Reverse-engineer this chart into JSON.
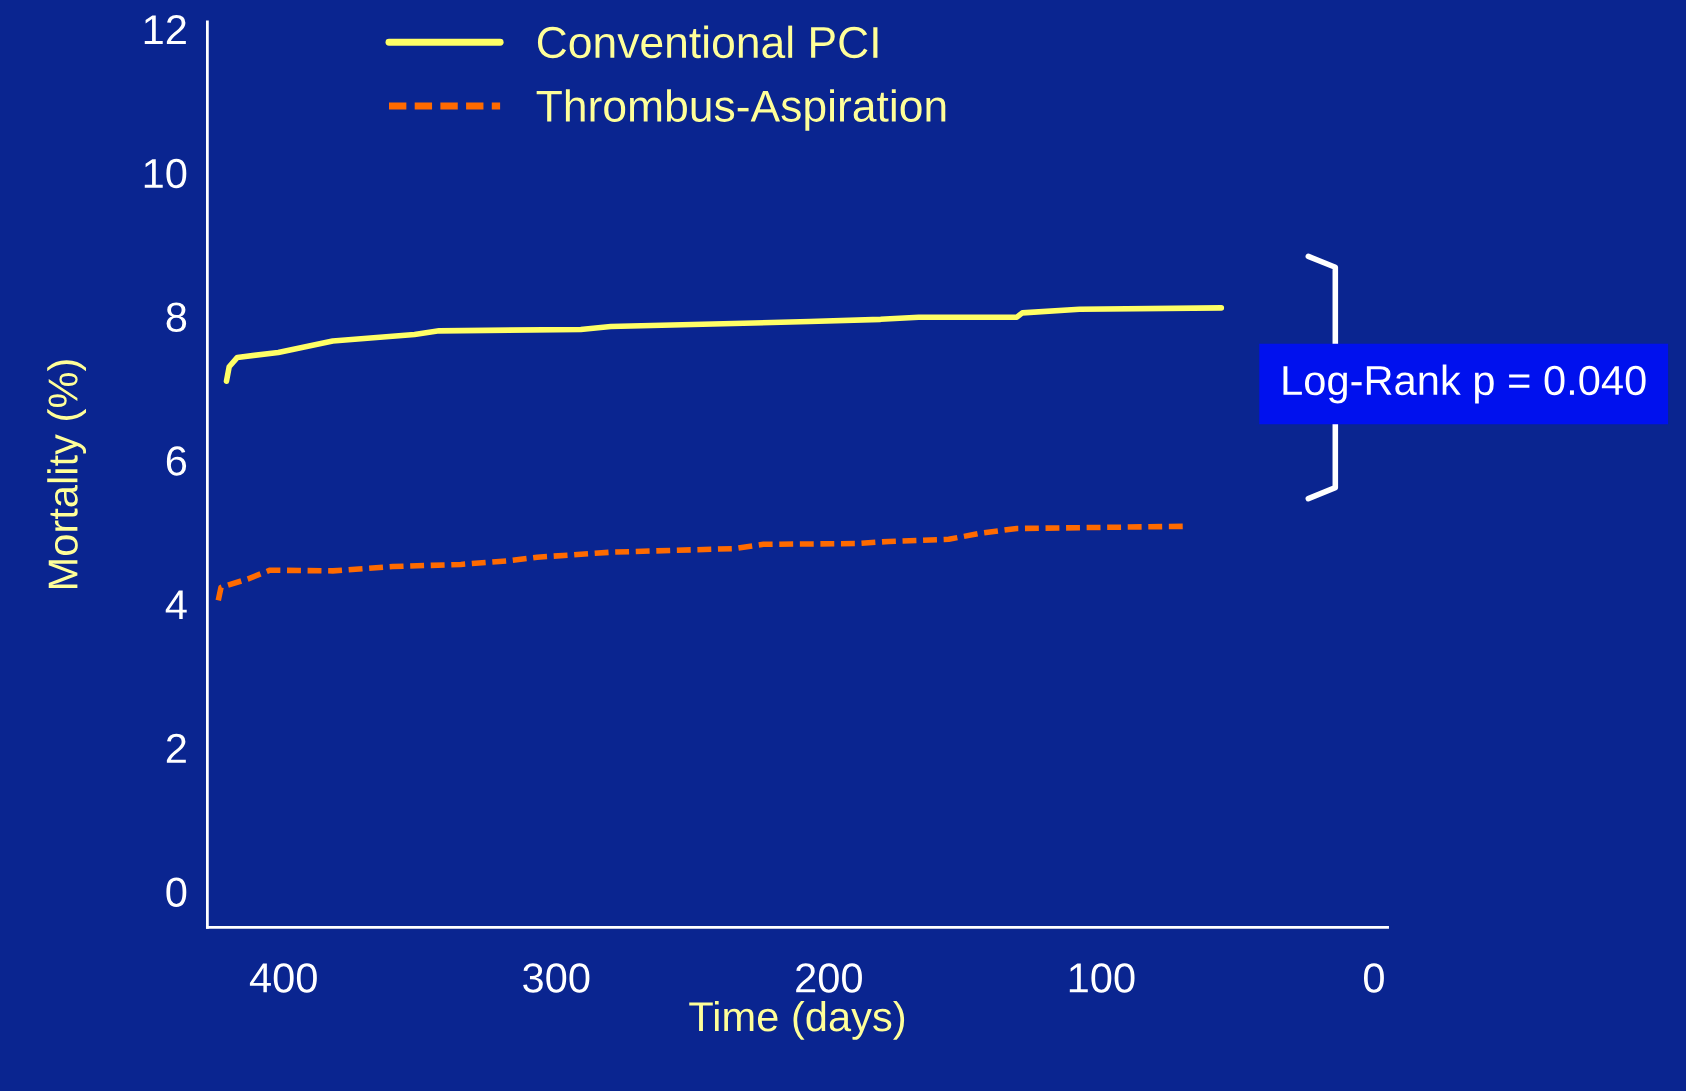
{
  "chart_data": {
    "type": "line",
    "xlabel": "Time (days)",
    "ylabel": "Mortality (%)",
    "xlim": [
      428,
      -5
    ],
    "xticks": [
      400,
      300,
      200,
      100,
      0
    ],
    "ylim": [
      -0.5,
      12.1
    ],
    "yticks": [
      0,
      2,
      4,
      6,
      8,
      10,
      12
    ],
    "series": [
      {
        "name": "Conventional PCI",
        "color": "#ffff66",
        "line_style": "solid",
        "x": [
          421,
          420,
          417,
          402,
          382,
          352,
          343,
          291,
          280,
          207,
          181,
          167,
          131,
          129,
          108,
          56
        ],
        "values": [
          7.1,
          7.3,
          7.43,
          7.5,
          7.66,
          7.75,
          7.8,
          7.82,
          7.86,
          7.93,
          7.96,
          7.99,
          7.99,
          8.05,
          8.1,
          8.12
        ]
      },
      {
        "name": "Thrombus-Aspiration",
        "color": "#ff6a00",
        "line_style": "dashed",
        "x": [
          424,
          423,
          413,
          405,
          382,
          360,
          335,
          318,
          307,
          280,
          235,
          224,
          190,
          178,
          156,
          145,
          131,
          69
        ],
        "values": [
          4.05,
          4.23,
          4.35,
          4.47,
          4.46,
          4.52,
          4.55,
          4.6,
          4.65,
          4.72,
          4.77,
          4.83,
          4.84,
          4.87,
          4.9,
          4.98,
          5.05,
          5.08
        ]
      }
    ],
    "annotations": [
      "Log-Rank p = 0.040"
    ],
    "legend": "top left",
    "grid": false
  }
}
